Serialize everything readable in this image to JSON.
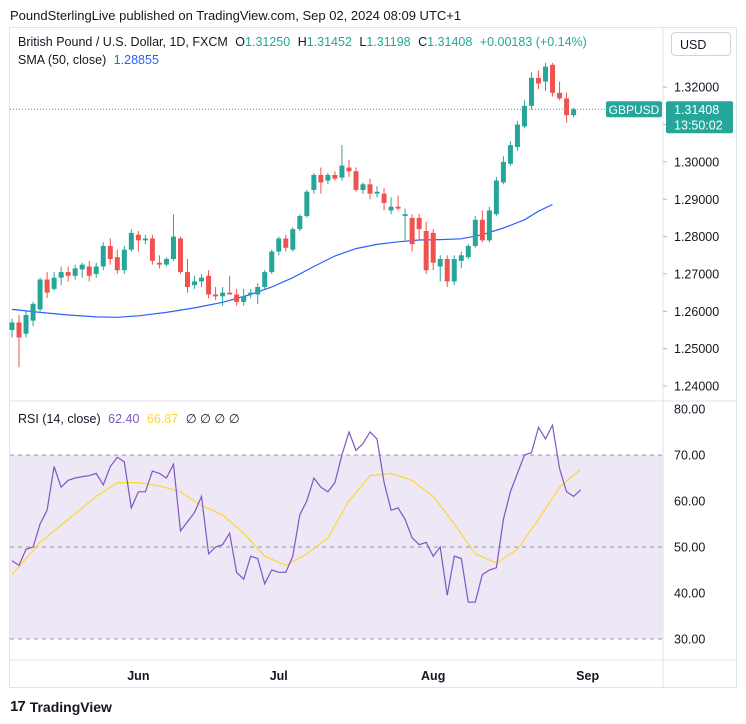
{
  "header": {
    "publisher_line": "PoundSterlingLive published on TradingView.com, Sep 02, 2024 08:09 UTC+1"
  },
  "legend": {
    "symbol": "British Pound / U.S. Dollar, 1D, FXCM",
    "o_label": "O",
    "o": "1.31250",
    "h_label": "H",
    "h": "1.31452",
    "l_label": "L",
    "l": "1.31198",
    "c_label": "C",
    "c": "1.31408",
    "change": "+0.00183 (+0.14%)",
    "sma_label": "SMA (50, close)",
    "sma_value": "1.28855",
    "rsi_label": "RSI (14, close)",
    "rsi_value": "62.40",
    "rsi_ma_value": "66.87",
    "rsi_extras": "∅ ∅ ∅ ∅"
  },
  "currency_button": "USD",
  "price_tag": {
    "symbol": "GBPUSD",
    "price": "1.31408",
    "countdown": "13:50:02"
  },
  "footer": {
    "brand": "TradingView",
    "logo_text": "17"
  },
  "colors": {
    "up": "#26a69a",
    "down": "#ef5350",
    "sma": "#2962ff",
    "rsi": "#7e57c2",
    "rsi_ma": "#fdd835",
    "band": "#ede7f6"
  },
  "chart_data": [
    {
      "type": "candlestick",
      "title": "British Pound / U.S. Dollar, 1D, FXCM",
      "x_tick_labels": [
        "Jun",
        "Jul",
        "Aug",
        "Sep"
      ],
      "y_tick_labels": [
        "1.24000",
        "1.25000",
        "1.26000",
        "1.27000",
        "1.28000",
        "1.29000",
        "1.30000",
        "1.31000",
        "1.32000"
      ],
      "ylim": [
        1.2365,
        1.3415
      ],
      "last_price": 1.31408,
      "candles": [
        [
          1.255,
          1.258,
          1.253,
          1.257
        ],
        [
          1.257,
          1.259,
          1.245,
          1.253
        ],
        [
          1.254,
          1.26,
          1.253,
          1.259
        ],
        [
          1.2575,
          1.2625,
          1.256,
          1.262
        ],
        [
          1.2605,
          1.269,
          1.26,
          1.2685
        ],
        [
          1.2685,
          1.2705,
          1.2635,
          1.265
        ],
        [
          1.266,
          1.2705,
          1.2655,
          1.269
        ],
        [
          1.269,
          1.272,
          1.267,
          1.2705
        ],
        [
          1.2705,
          1.272,
          1.268,
          1.2695
        ],
        [
          1.2695,
          1.2725,
          1.2685,
          1.2715
        ],
        [
          1.2712,
          1.273,
          1.269,
          1.2725
        ],
        [
          1.272,
          1.2735,
          1.268,
          1.2695
        ],
        [
          1.27,
          1.273,
          1.269,
          1.272
        ],
        [
          1.272,
          1.2785,
          1.271,
          1.2775
        ],
        [
          1.2775,
          1.2795,
          1.2725,
          1.274
        ],
        [
          1.2745,
          1.2765,
          1.27,
          1.271
        ],
        [
          1.271,
          1.2775,
          1.27,
          1.2765
        ],
        [
          1.2765,
          1.282,
          1.276,
          1.281
        ],
        [
          1.2805,
          1.2815,
          1.276,
          1.279
        ],
        [
          1.279,
          1.2805,
          1.278,
          1.2795
        ],
        [
          1.2795,
          1.2805,
          1.2725,
          1.2735
        ],
        [
          1.273,
          1.275,
          1.2715,
          1.2725
        ],
        [
          1.2725,
          1.2745,
          1.272,
          1.274
        ],
        [
          1.274,
          1.286,
          1.2735,
          1.28
        ],
        [
          1.2795,
          1.28,
          1.27,
          1.2705
        ],
        [
          1.2705,
          1.274,
          1.265,
          1.2665
        ],
        [
          1.267,
          1.2695,
          1.266,
          1.268
        ],
        [
          1.268,
          1.27,
          1.2665,
          1.269
        ],
        [
          1.2695,
          1.271,
          1.2635,
          1.2645
        ],
        [
          1.2645,
          1.2665,
          1.263,
          1.264
        ],
        [
          1.264,
          1.2665,
          1.2615,
          1.265
        ],
        [
          1.265,
          1.2695,
          1.2645,
          1.2645
        ],
        [
          1.2645,
          1.266,
          1.2615,
          1.2625
        ],
        [
          1.2625,
          1.266,
          1.2615,
          1.264
        ],
        [
          1.2645,
          1.266,
          1.2635,
          1.265
        ],
        [
          1.2645,
          1.2675,
          1.262,
          1.2665
        ],
        [
          1.2665,
          1.271,
          1.266,
          1.2705
        ],
        [
          1.2705,
          1.2765,
          1.27,
          1.276
        ],
        [
          1.276,
          1.28,
          1.275,
          1.2795
        ],
        [
          1.2795,
          1.2805,
          1.276,
          1.277
        ],
        [
          1.2765,
          1.2825,
          1.276,
          1.282
        ],
        [
          1.282,
          1.286,
          1.2815,
          1.2855
        ],
        [
          1.2855,
          1.2925,
          1.285,
          1.292
        ],
        [
          1.2925,
          1.297,
          1.2915,
          1.2965
        ],
        [
          1.2965,
          1.2985,
          1.2915,
          1.2945
        ],
        [
          1.295,
          1.297,
          1.294,
          1.2965
        ],
        [
          1.2965,
          1.2975,
          1.295,
          1.2955
        ],
        [
          1.2958,
          1.3045,
          1.295,
          1.299
        ],
        [
          1.2985,
          1.3005,
          1.296,
          1.2975
        ],
        [
          1.2975,
          1.2985,
          1.292,
          1.2925
        ],
        [
          1.2925,
          1.2945,
          1.2915,
          1.294
        ],
        [
          1.294,
          1.2955,
          1.29,
          1.2915
        ],
        [
          1.2915,
          1.2935,
          1.2905,
          1.292
        ],
        [
          1.2915,
          1.293,
          1.287,
          1.289
        ],
        [
          1.287,
          1.2905,
          1.286,
          1.288
        ],
        [
          1.288,
          1.291,
          1.287,
          1.2875
        ],
        [
          1.2855,
          1.2875,
          1.279,
          1.286
        ],
        [
          1.285,
          1.286,
          1.276,
          1.278
        ],
        [
          1.285,
          1.286,
          1.279,
          1.282
        ],
        [
          1.2815,
          1.284,
          1.27,
          1.271
        ],
        [
          1.281,
          1.282,
          1.271,
          1.273
        ],
        [
          1.272,
          1.275,
          1.268,
          1.274
        ],
        [
          1.274,
          1.275,
          1.2665,
          1.268
        ],
        [
          1.268,
          1.275,
          1.267,
          1.274
        ],
        [
          1.2735,
          1.276,
          1.2715,
          1.275
        ],
        [
          1.2745,
          1.278,
          1.274,
          1.2775
        ],
        [
          1.2775,
          1.2855,
          1.277,
          1.2845
        ],
        [
          1.2845,
          1.287,
          1.2785,
          1.279
        ],
        [
          1.279,
          1.288,
          1.2785,
          1.287
        ],
        [
          1.286,
          1.296,
          1.2855,
          1.295
        ],
        [
          1.2945,
          1.3015,
          1.294,
          1.3
        ],
        [
          1.2995,
          1.3055,
          1.299,
          1.3045
        ],
        [
          1.304,
          1.311,
          1.303,
          1.31
        ],
        [
          1.3095,
          1.3165,
          1.309,
          1.315
        ],
        [
          1.315,
          1.324,
          1.314,
          1.3225
        ],
        [
          1.3225,
          1.3245,
          1.3195,
          1.321
        ],
        [
          1.3215,
          1.3265,
          1.319,
          1.3255
        ],
        [
          1.326,
          1.3265,
          1.3175,
          1.3185
        ],
        [
          1.3185,
          1.3215,
          1.3165,
          1.317
        ],
        [
          1.317,
          1.3185,
          1.3105,
          1.3125
        ],
        [
          1.3125,
          1.3145,
          1.312,
          1.3141
        ]
      ],
      "sma": [
        [
          0,
          1.2605
        ],
        [
          4,
          1.2597
        ],
        [
          8,
          1.259
        ],
        [
          12,
          1.2585
        ],
        [
          15,
          1.2584
        ],
        [
          18,
          1.2588
        ],
        [
          22,
          1.2597
        ],
        [
          26,
          1.2609
        ],
        [
          30,
          1.2624
        ],
        [
          34,
          1.2645
        ],
        [
          37,
          1.2665
        ],
        [
          40,
          1.269
        ],
        [
          43,
          1.272
        ],
        [
          46,
          1.2748
        ],
        [
          49,
          1.2768
        ],
        [
          52,
          1.2779
        ],
        [
          55,
          1.2786
        ],
        [
          58,
          1.2791
        ],
        [
          61,
          1.2792
        ],
        [
          64,
          1.2794
        ],
        [
          67,
          1.2805
        ],
        [
          70,
          1.2823
        ],
        [
          73,
          1.2845
        ],
        [
          75,
          1.2868
        ],
        [
          77,
          1.2886
        ]
      ]
    },
    {
      "type": "line",
      "title": "RSI (14, close)",
      "y_tick_labels": [
        "30.00",
        "40.00",
        "50.00",
        "60.00",
        "70.00",
        "80.00"
      ],
      "ylim": [
        27.5,
        82.5
      ],
      "band": [
        30,
        70
      ],
      "midline": 50,
      "series": [
        {
          "name": "RSI",
          "values": [
            47,
            46,
            49.5,
            50,
            55,
            58,
            67.5,
            63,
            64.5,
            65,
            65.3,
            65.5,
            66,
            63.5,
            67.5,
            69.5,
            68.5,
            58.5,
            62,
            62,
            66.5,
            66,
            65,
            68,
            53.5,
            55.5,
            57.5,
            61,
            48.5,
            50,
            50.5,
            53,
            44.5,
            43,
            48,
            47.5,
            42,
            45,
            44.5,
            44.5,
            48,
            57,
            60,
            65,
            63,
            62,
            64,
            70,
            75,
            71,
            72.5,
            75,
            73.5,
            64,
            58,
            58.5,
            56,
            52,
            50.5,
            51,
            48,
            50,
            39.5,
            48,
            47.5,
            38,
            38,
            44,
            45,
            45.5,
            56,
            62,
            66,
            70,
            70.5,
            76,
            73.5,
            76.5,
            67,
            62,
            61,
            62.4
          ]
        },
        {
          "name": "RSI-based MA",
          "points": [
            [
              0,
              44
            ],
            [
              4,
              51
            ],
            [
              8,
              56
            ],
            [
              12,
              61
            ],
            [
              15,
              64
            ],
            [
              18,
              64
            ],
            [
              21,
              63.3
            ],
            [
              24,
              62
            ],
            [
              27,
              59
            ],
            [
              30,
              57
            ],
            [
              33,
              53
            ],
            [
              36,
              48
            ],
            [
              39,
              46
            ],
            [
              42,
              48.5
            ],
            [
              45,
              52
            ],
            [
              48,
              60
            ],
            [
              51,
              65.5
            ],
            [
              54,
              66
            ],
            [
              57,
              64.5
            ],
            [
              60,
              61
            ],
            [
              63,
              55
            ],
            [
              66,
              48.5
            ],
            [
              69,
              46.5
            ],
            [
              72,
              49.5
            ],
            [
              75,
              56
            ],
            [
              78,
              63
            ],
            [
              81,
              66.87
            ]
          ]
        }
      ]
    }
  ]
}
